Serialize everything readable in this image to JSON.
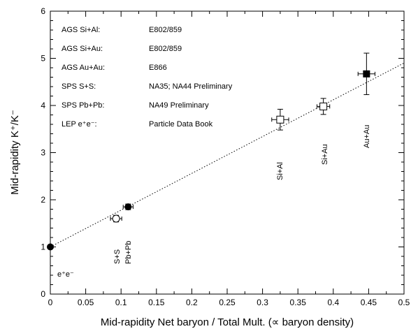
{
  "chart_data": {
    "type": "scatter",
    "xlabel": "Mid-rapidity Net baryon / Total Mult. (∝ baryon density)",
    "ylabel": "Mid-rapidity K⁺/K⁻",
    "xlim": [
      0,
      0.5
    ],
    "ylim": [
      0,
      6
    ],
    "x_ticks": [
      "0",
      "0.05",
      "0.1",
      "0.15",
      "0.2",
      "0.25",
      "0.3",
      "0.35",
      "0.4",
      "0.45",
      "0.5"
    ],
    "y_ticks": [
      "0",
      "1",
      "2",
      "3",
      "4",
      "5",
      "6"
    ],
    "grid": false,
    "legend": {
      "placement": "top-left",
      "entries": [
        {
          "system": "AGS Si+Al:",
          "source": "E802/859"
        },
        {
          "system": "AGS Si+Au:",
          "source": "E802/859"
        },
        {
          "system": "AGS Au+Au:",
          "source": "E866"
        },
        {
          "system": "SPS S+S:",
          "source": "NA35; NA44 Preliminary"
        },
        {
          "system": "SPS Pb+Pb:",
          "source": "NA49 Preliminary"
        },
        {
          "system": "LEP e⁺e⁻:",
          "source": "Particle Data Book"
        }
      ]
    },
    "points": [
      {
        "label": "e⁺e⁻",
        "x": 0.0,
        "y": 1.0,
        "marker": "filled-circle"
      },
      {
        "label": "S+S",
        "x": 0.093,
        "y": 1.6,
        "marker": "open-circle",
        "xerr": 0.008,
        "yerr": 0.07
      },
      {
        "label": "Pb+Pb",
        "x": 0.11,
        "y": 1.85,
        "marker": "filled-circle",
        "xerr": 0.007,
        "yerr": 0.06
      },
      {
        "label": "Si+Al",
        "x": 0.325,
        "y": 3.7,
        "marker": "open-square",
        "xerr": 0.012,
        "yerr": 0.22
      },
      {
        "label": "Si+Au",
        "x": 0.386,
        "y": 3.98,
        "marker": "open-square",
        "xerr": 0.009,
        "yerr": 0.17
      },
      {
        "label": "Au+Au",
        "x": 0.447,
        "y": 4.67,
        "marker": "filled-square",
        "xerr": 0.012,
        "yerr": 0.44
      }
    ],
    "fit_line": {
      "style": "dotted",
      "x": [
        0,
        0.5
      ],
      "y": [
        1.0,
        4.9
      ]
    }
  }
}
